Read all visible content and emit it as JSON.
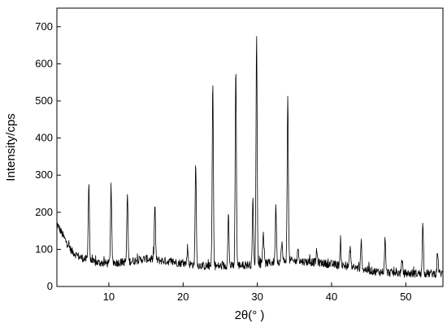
{
  "chart_data": {
    "type": "line",
    "title": "",
    "xlabel": "2θ(° )",
    "ylabel": "Intensity/cps",
    "xlim": [
      3,
      55
    ],
    "ylim": [
      0,
      750
    ],
    "grid": false,
    "line_color": "#000000",
    "x_ticks": [
      "10",
      "20",
      "30",
      "40",
      "50"
    ],
    "y_ticks": [
      "0",
      "100",
      "200",
      "300",
      "400",
      "500",
      "600",
      "700"
    ],
    "peaks": [
      {
        "x": 7.3,
        "y": 282
      },
      {
        "x": 10.3,
        "y": 268
      },
      {
        "x": 12.5,
        "y": 250
      },
      {
        "x": 16.2,
        "y": 222
      },
      {
        "x": 20.6,
        "y": 105
      },
      {
        "x": 21.7,
        "y": 334
      },
      {
        "x": 24.0,
        "y": 547
      },
      {
        "x": 26.1,
        "y": 195
      },
      {
        "x": 27.1,
        "y": 596
      },
      {
        "x": 29.4,
        "y": 232
      },
      {
        "x": 29.9,
        "y": 673
      },
      {
        "x": 30.8,
        "y": 150
      },
      {
        "x": 32.5,
        "y": 220
      },
      {
        "x": 33.3,
        "y": 120
      },
      {
        "x": 34.1,
        "y": 508
      },
      {
        "x": 35.5,
        "y": 105
      },
      {
        "x": 38.0,
        "y": 95
      },
      {
        "x": 41.2,
        "y": 110
      },
      {
        "x": 42.5,
        "y": 108
      },
      {
        "x": 44.0,
        "y": 120
      },
      {
        "x": 47.2,
        "y": 125
      },
      {
        "x": 49.5,
        "y": 70
      },
      {
        "x": 52.3,
        "y": 172
      },
      {
        "x": 54.3,
        "y": 90
      }
    ],
    "baseline": [
      {
        "x": 3,
        "y": 170
      },
      {
        "x": 4,
        "y": 130
      },
      {
        "x": 5,
        "y": 95
      },
      {
        "x": 6,
        "y": 80
      },
      {
        "x": 8,
        "y": 65
      },
      {
        "x": 10,
        "y": 62
      },
      {
        "x": 13,
        "y": 68
      },
      {
        "x": 15,
        "y": 75
      },
      {
        "x": 17,
        "y": 70
      },
      {
        "x": 19,
        "y": 65
      },
      {
        "x": 21,
        "y": 60
      },
      {
        "x": 23,
        "y": 55
      },
      {
        "x": 26,
        "y": 55
      },
      {
        "x": 30,
        "y": 60
      },
      {
        "x": 34,
        "y": 70
      },
      {
        "x": 38,
        "y": 65
      },
      {
        "x": 42,
        "y": 55
      },
      {
        "x": 46,
        "y": 40
      },
      {
        "x": 50,
        "y": 35
      },
      {
        "x": 55,
        "y": 35
      }
    ],
    "peak_width": 0.11,
    "noise_amplitude": 11
  }
}
